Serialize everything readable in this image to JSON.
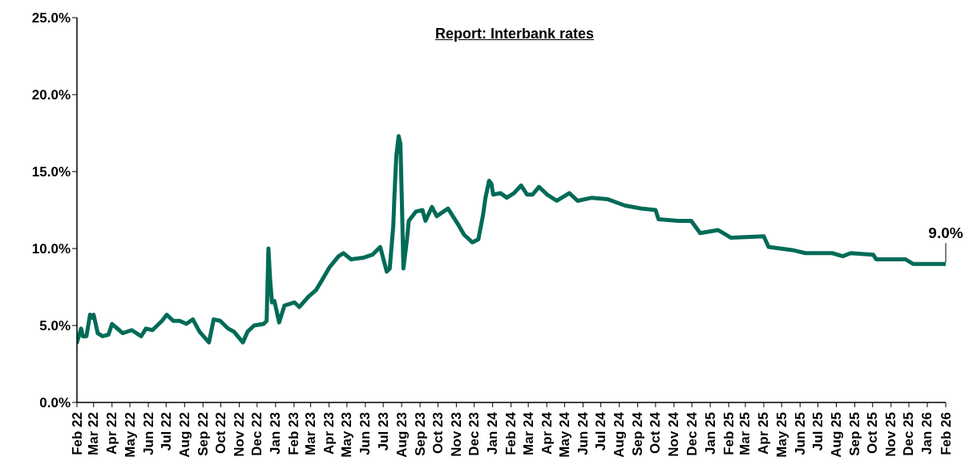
{
  "chart_data": {
    "type": "line",
    "title": "Report: Interbank rates",
    "x": [
      "2022-02-01",
      "2022-02-08",
      "2022-02-11",
      "2022-02-17",
      "2022-02-23",
      "2022-02-27",
      "2022-03-01",
      "2022-03-08",
      "2022-03-16",
      "2022-03-26",
      "2022-04-01",
      "2022-04-13",
      "2022-04-19",
      "2022-05-04",
      "2022-05-20",
      "2022-05-28",
      "2022-06-08",
      "2022-06-24",
      "2022-07-02",
      "2022-07-13",
      "2022-07-24",
      "2022-08-04",
      "2022-08-15",
      "2022-08-26",
      "2022-09-11",
      "2022-09-19",
      "2022-09-30",
      "2022-10-13",
      "2022-10-23",
      "2022-11-07",
      "2022-11-15",
      "2022-11-26",
      "2022-12-12",
      "2022-12-17",
      "2022-12-20",
      "2022-12-23",
      "2022-12-26",
      "2022-12-30",
      "2023-01-07",
      "2023-01-16",
      "2023-02-02",
      "2023-02-10",
      "2023-02-26",
      "2023-03-10",
      "2023-03-21",
      "2023-04-02",
      "2023-04-17",
      "2023-04-25",
      "2023-05-08",
      "2023-05-28",
      "2023-06-13",
      "2023-06-26",
      "2023-07-07",
      "2023-07-12",
      "2023-07-18",
      "2023-07-20",
      "2023-07-23",
      "2023-07-27",
      "2023-07-30",
      "2023-08-02",
      "2023-08-04",
      "2023-08-10",
      "2023-08-13",
      "2023-08-25",
      "2023-09-05",
      "2023-09-10",
      "2023-09-21",
      "2023-09-29",
      "2023-10-18",
      "2023-11-05",
      "2023-11-14",
      "2023-11-28",
      "2023-12-08",
      "2023-12-16",
      "2023-12-20",
      "2023-12-26",
      "2023-12-30",
      "2024-01-02",
      "2024-01-14",
      "2024-01-25",
      "2024-02-06",
      "2024-02-18",
      "2024-02-28",
      "2024-03-08",
      "2024-03-19",
      "2024-04-02",
      "2024-04-18",
      "2024-05-09",
      "2024-05-23",
      "2024-06-16",
      "2024-07-13",
      "2024-08-10",
      "2024-09-06",
      "2024-10-01",
      "2024-10-06",
      "2024-11-08",
      "2024-11-30",
      "2024-12-15",
      "2025-01-14",
      "2025-02-05",
      "2025-04-01",
      "2025-04-09",
      "2025-05-19",
      "2025-06-10",
      "2025-07-25",
      "2025-08-12",
      "2025-08-25",
      "2025-10-02",
      "2025-10-07",
      "2025-11-25",
      "2025-12-08",
      "2026-02-01"
    ],
    "series": [
      {
        "color": "#006b57",
        "values": [
          3.9,
          4.8,
          4.3,
          4.3,
          5.7,
          5.5,
          5.7,
          4.5,
          4.3,
          4.4,
          5.1,
          4.7,
          4.5,
          4.7,
          4.3,
          4.8,
          4.7,
          5.3,
          5.7,
          5.3,
          5.3,
          5.1,
          5.4,
          4.6,
          3.9,
          5.4,
          5.3,
          4.8,
          4.6,
          3.9,
          4.6,
          5.0,
          5.1,
          5.3,
          10.0,
          7.9,
          6.5,
          6.6,
          5.2,
          6.3,
          6.5,
          6.2,
          6.9,
          7.3,
          8.0,
          8.8,
          9.5,
          9.7,
          9.3,
          9.4,
          9.6,
          10.1,
          8.5,
          8.7,
          11.5,
          13.5,
          16.0,
          17.3,
          16.8,
          12.1,
          8.7,
          10.6,
          11.8,
          12.4,
          12.5,
          11.8,
          12.7,
          12.1,
          12.6,
          11.5,
          10.9,
          10.4,
          10.6,
          12.2,
          13.3,
          14.4,
          14.2,
          13.5,
          13.6,
          13.3,
          13.6,
          14.1,
          13.5,
          13.5,
          14.0,
          13.5,
          13.1,
          13.6,
          13.1,
          13.3,
          13.2,
          12.8,
          12.6,
          12.5,
          11.9,
          11.8,
          11.8,
          11.0,
          11.2,
          10.7,
          10.8,
          10.1,
          9.9,
          9.7,
          9.7,
          9.5,
          9.7,
          9.6,
          9.3,
          9.3,
          9.0,
          9.0
        ]
      }
    ],
    "ylim": [
      0,
      25
    ],
    "yticks": [
      {
        "value": 0,
        "label": "0.0%"
      },
      {
        "value": 5,
        "label": "5.0%"
      },
      {
        "value": 10,
        "label": "10.0%"
      },
      {
        "value": 15,
        "label": "15.0%"
      },
      {
        "value": 20,
        "label": "20.0%"
      },
      {
        "value": 25,
        "label": "25.0%"
      }
    ],
    "xlim": [
      "2022-02-01",
      "2026-02-01"
    ],
    "xticks": [
      {
        "value": "2022-02-01",
        "label": "Feb 22"
      },
      {
        "value": "2022-03-01",
        "label": "Mar 22"
      },
      {
        "value": "2022-04-01",
        "label": "Apr 22"
      },
      {
        "value": "2022-05-01",
        "label": "May 22"
      },
      {
        "value": "2022-06-01",
        "label": "Jun 22"
      },
      {
        "value": "2022-07-01",
        "label": "Jul 22"
      },
      {
        "value": "2022-08-01",
        "label": "Aug 22"
      },
      {
        "value": "2022-09-01",
        "label": "Sep 22"
      },
      {
        "value": "2022-10-01",
        "label": "Oct 22"
      },
      {
        "value": "2022-11-01",
        "label": "Nov 22"
      },
      {
        "value": "2022-12-01",
        "label": "Dec 22"
      },
      {
        "value": "2023-01-01",
        "label": "Jan 23"
      },
      {
        "value": "2023-02-01",
        "label": "Feb 23"
      },
      {
        "value": "2023-03-01",
        "label": "Mar 23"
      },
      {
        "value": "2023-04-01",
        "label": "Apr 23"
      },
      {
        "value": "2023-05-01",
        "label": "May 23"
      },
      {
        "value": "2023-06-01",
        "label": "Jun 23"
      },
      {
        "value": "2023-07-01",
        "label": "Jul 23"
      },
      {
        "value": "2023-08-01",
        "label": "Aug 23"
      },
      {
        "value": "2023-09-01",
        "label": "Sep 23"
      },
      {
        "value": "2023-10-01",
        "label": "Oct 23"
      },
      {
        "value": "2023-11-01",
        "label": "Nov 23"
      },
      {
        "value": "2023-12-01",
        "label": "Dec 23"
      },
      {
        "value": "2024-01-01",
        "label": "Jan 24"
      },
      {
        "value": "2024-02-01",
        "label": "Feb 24"
      },
      {
        "value": "2024-03-01",
        "label": "Mar 24"
      },
      {
        "value": "2024-04-01",
        "label": "Apr 24"
      },
      {
        "value": "2024-05-01",
        "label": "May 24"
      },
      {
        "value": "2024-06-01",
        "label": "Jun 24"
      },
      {
        "value": "2024-07-01",
        "label": "Jul 24"
      },
      {
        "value": "2024-08-01",
        "label": "Aug 24"
      },
      {
        "value": "2024-09-01",
        "label": "Sep 24"
      },
      {
        "value": "2024-10-01",
        "label": "Oct 24"
      },
      {
        "value": "2024-11-01",
        "label": "Nov 24"
      },
      {
        "value": "2024-12-01",
        "label": "Dec 24"
      },
      {
        "value": "2025-01-01",
        "label": "Jan 25"
      },
      {
        "value": "2025-02-01",
        "label": "Feb 25"
      },
      {
        "value": "2025-03-01",
        "label": "Mar 25"
      },
      {
        "value": "2025-04-01",
        "label": "Apr 25"
      },
      {
        "value": "2025-05-01",
        "label": "May 25"
      },
      {
        "value": "2025-06-01",
        "label": "Jun 25"
      },
      {
        "value": "2025-07-01",
        "label": "Jul 25"
      },
      {
        "value": "2025-08-01",
        "label": "Aug 25"
      },
      {
        "value": "2025-09-01",
        "label": "Sep 25"
      },
      {
        "value": "2025-10-01",
        "label": "Oct 25"
      },
      {
        "value": "2025-11-01",
        "label": "Nov 25"
      },
      {
        "value": "2025-12-01",
        "label": "Dec 25"
      },
      {
        "value": "2026-01-01",
        "label": "Jan 26"
      },
      {
        "value": "2026-02-01",
        "label": "Feb 26"
      }
    ],
    "annotations": [
      {
        "text": "9.0%",
        "x": "2026-02-01",
        "y": 9.0
      }
    ],
    "legend": false,
    "grid": false,
    "marker": "none",
    "line_style": "solid"
  }
}
